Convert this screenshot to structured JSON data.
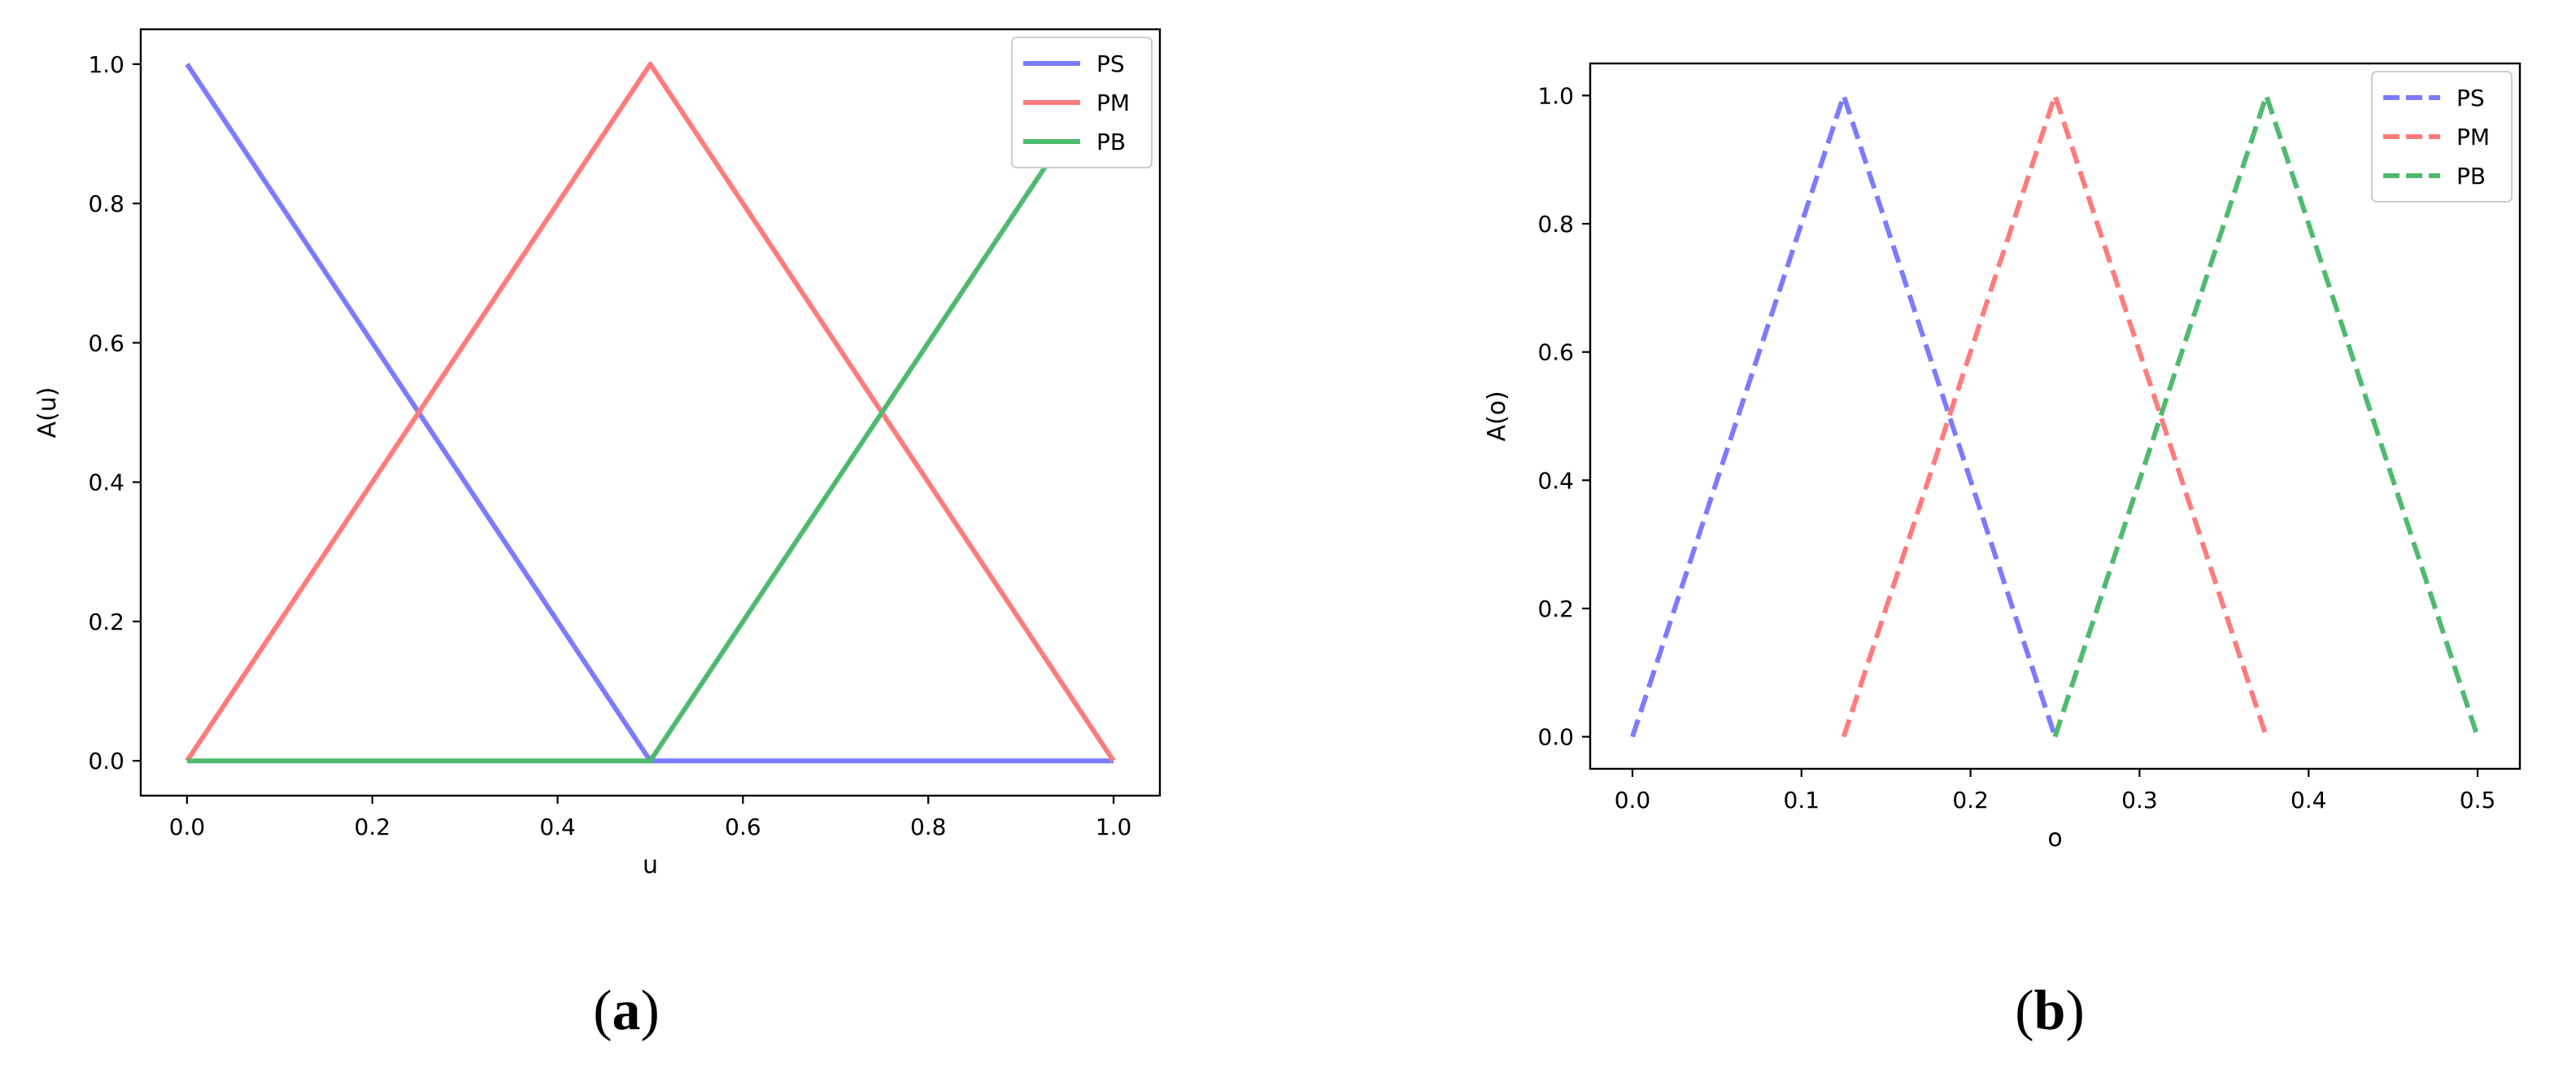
{
  "chart_data": [
    {
      "type": "line",
      "xlabel": "u",
      "ylabel": "A(u)",
      "xlim": [
        -0.05,
        1.05
      ],
      "ylim": [
        -0.05,
        1.05
      ],
      "xticks": [
        "0.0",
        "0.2",
        "0.4",
        "0.6",
        "0.8",
        "1.0"
      ],
      "yticks": [
        "0.0",
        "0.2",
        "0.4",
        "0.6",
        "0.8",
        "1.0"
      ],
      "legend_position": "top-right",
      "line_style": "solid",
      "caption_letter": "a",
      "series": [
        {
          "name": "PS",
          "color": "#7b7bff",
          "x": [
            0,
            0.5,
            1.0
          ],
          "y": [
            1,
            0,
            0
          ]
        },
        {
          "name": "PM",
          "color": "#ff7b7b",
          "x": [
            0,
            0.5,
            1.0
          ],
          "y": [
            0,
            1,
            0
          ]
        },
        {
          "name": "PB",
          "color": "#4fba6f",
          "x": [
            0,
            0.5,
            1.0
          ],
          "y": [
            0,
            0,
            1
          ]
        }
      ]
    },
    {
      "type": "line",
      "xlabel": "o",
      "ylabel": "A(o)",
      "xlim": [
        -0.025,
        0.525
      ],
      "ylim": [
        -0.05,
        1.05
      ],
      "xticks": [
        "0.0",
        "0.1",
        "0.2",
        "0.3",
        "0.4",
        "0.5"
      ],
      "yticks": [
        "0.0",
        "0.2",
        "0.4",
        "0.6",
        "0.8",
        "1.0"
      ],
      "legend_position": "top-right",
      "line_style": "dashed",
      "caption_letter": "b",
      "series": [
        {
          "name": "PS",
          "color": "#7b7bff",
          "x": [
            0,
            0.125,
            0.25
          ],
          "y": [
            0,
            1,
            0
          ]
        },
        {
          "name": "PM",
          "color": "#ff7b7b",
          "x": [
            0.125,
            0.25,
            0.375
          ],
          "y": [
            0,
            1,
            0
          ]
        },
        {
          "name": "PB",
          "color": "#4fba6f",
          "x": [
            0.25,
            0.375,
            0.5
          ],
          "y": [
            0,
            1,
            0
          ]
        }
      ]
    }
  ]
}
